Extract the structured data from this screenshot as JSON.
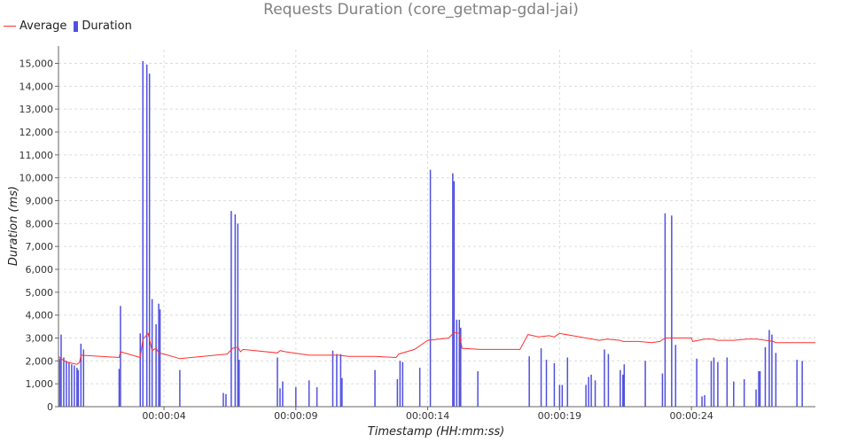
{
  "chart_data": {
    "type": "bar",
    "title": "Requests Duration (core_getmap-gdal-jai)",
    "xlabel": "Timestamp (HH:mm:ss)",
    "ylabel": "Duration (ms)",
    "ylim": [
      0,
      15600
    ],
    "xlim_seconds": [
      0,
      28.7
    ],
    "y_ticks": [
      0,
      1000,
      2000,
      3000,
      4000,
      5000,
      6000,
      7000,
      8000,
      9000,
      10000,
      11000,
      12000,
      13000,
      14000,
      15000
    ],
    "y_tick_labels": [
      "0",
      "1,000",
      "2,000",
      "3,000",
      "4,000",
      "5,000",
      "6,000",
      "7,000",
      "8,000",
      "9,000",
      "10,000",
      "11,000",
      "12,000",
      "13,000",
      "14,000",
      "15,000"
    ],
    "x_ticks_seconds": [
      4,
      9,
      14,
      19,
      24
    ],
    "x_tick_labels": [
      "00:00:04",
      "00:00:09",
      "00:00:14",
      "00:00:19",
      "00:00:24"
    ],
    "grid": true,
    "legend_position": "top-left",
    "colors": {
      "average": "#ff3030",
      "duration": "#5050e0",
      "duration_light": "#b4b4ee",
      "grid": "#dddddd"
    },
    "series": [
      {
        "name": "Average",
        "type": "line",
        "points": [
          [
            0.0,
            2200
          ],
          [
            0.15,
            2050
          ],
          [
            0.3,
            1950
          ],
          [
            0.5,
            1900
          ],
          [
            0.7,
            1850
          ],
          [
            0.8,
            1950
          ],
          [
            0.85,
            2250
          ],
          [
            2.3,
            2150
          ],
          [
            2.35,
            2400
          ],
          [
            3.1,
            2150
          ],
          [
            3.2,
            2950
          ],
          [
            3.4,
            3200
          ],
          [
            3.55,
            2450
          ],
          [
            3.7,
            2550
          ],
          [
            3.8,
            2350
          ],
          [
            4.0,
            2300
          ],
          [
            4.6,
            2100
          ],
          [
            6.4,
            2300
          ],
          [
            6.6,
            2550
          ],
          [
            6.8,
            2600
          ],
          [
            6.9,
            2400
          ],
          [
            7.0,
            2500
          ],
          [
            8.3,
            2350
          ],
          [
            8.4,
            2450
          ],
          [
            8.6,
            2400
          ],
          [
            9.5,
            2250
          ],
          [
            10.6,
            2250
          ],
          [
            11.0,
            2200
          ],
          [
            12.0,
            2200
          ],
          [
            12.8,
            2150
          ],
          [
            12.9,
            2300
          ],
          [
            13.5,
            2500
          ],
          [
            14.0,
            2900
          ],
          [
            14.8,
            3000
          ],
          [
            15.0,
            3250
          ],
          [
            15.2,
            3200
          ],
          [
            15.3,
            2550
          ],
          [
            16.0,
            2500
          ],
          [
            17.5,
            2500
          ],
          [
            17.8,
            3150
          ],
          [
            18.2,
            3050
          ],
          [
            18.6,
            3100
          ],
          [
            18.8,
            3050
          ],
          [
            19.0,
            3200
          ],
          [
            19.5,
            3100
          ],
          [
            20.0,
            3000
          ],
          [
            20.5,
            2900
          ],
          [
            20.8,
            2950
          ],
          [
            21.3,
            2900
          ],
          [
            21.4,
            2850
          ],
          [
            22.0,
            2850
          ],
          [
            22.5,
            2800
          ],
          [
            22.8,
            2850
          ],
          [
            23.0,
            3000
          ],
          [
            24.0,
            3000
          ],
          [
            24.05,
            2850
          ],
          [
            24.5,
            2950
          ],
          [
            24.8,
            2950
          ],
          [
            25.0,
            2900
          ],
          [
            25.6,
            2900
          ],
          [
            26.1,
            2950
          ],
          [
            26.5,
            2950
          ],
          [
            27.1,
            2850
          ],
          [
            27.2,
            2800
          ],
          [
            28.7,
            2800
          ]
        ]
      },
      {
        "name": "Duration",
        "type": "bar",
        "points": [
          [
            0.05,
            2100
          ],
          [
            0.1,
            3150
          ],
          [
            0.2,
            2150
          ],
          [
            0.3,
            2000
          ],
          [
            0.4,
            1950
          ],
          [
            0.5,
            1850
          ],
          [
            0.6,
            1800
          ],
          [
            0.7,
            1700
          ],
          [
            0.75,
            1600
          ],
          [
            0.85,
            2750
          ],
          [
            0.95,
            2500
          ],
          [
            2.3,
            1650
          ],
          [
            2.35,
            4400
          ],
          [
            3.1,
            3200
          ],
          [
            3.2,
            15100
          ],
          [
            3.35,
            14950
          ],
          [
            3.45,
            14550
          ],
          [
            3.55,
            4700
          ],
          [
            3.7,
            3600
          ],
          [
            3.8,
            4500
          ],
          [
            3.85,
            4250
          ],
          [
            4.6,
            1600
          ],
          [
            6.25,
            600
          ],
          [
            6.35,
            550
          ],
          [
            6.55,
            8550
          ],
          [
            6.7,
            8400
          ],
          [
            6.8,
            8000
          ],
          [
            6.85,
            2050
          ],
          [
            8.3,
            2150
          ],
          [
            8.4,
            800
          ],
          [
            8.5,
            1100
          ],
          [
            9.0,
            850
          ],
          [
            9.5,
            1150
          ],
          [
            9.8,
            850
          ],
          [
            10.4,
            2450
          ],
          [
            10.55,
            2300
          ],
          [
            10.7,
            2300
          ],
          [
            10.75,
            1250
          ],
          [
            12.0,
            1600
          ],
          [
            12.85,
            1200
          ],
          [
            12.95,
            2000
          ],
          [
            13.05,
            1950
          ],
          [
            13.7,
            1700
          ],
          [
            14.1,
            10350
          ],
          [
            14.95,
            10200
          ],
          [
            15.0,
            9850
          ],
          [
            15.1,
            3800
          ],
          [
            15.2,
            3800
          ],
          [
            15.25,
            3450
          ],
          [
            15.9,
            1550
          ],
          [
            17.85,
            2200
          ],
          [
            18.3,
            2550
          ],
          [
            18.5,
            2050
          ],
          [
            18.8,
            1900
          ],
          [
            19.0,
            950
          ],
          [
            19.1,
            950
          ],
          [
            19.3,
            2150
          ],
          [
            20.0,
            950
          ],
          [
            20.1,
            1300
          ],
          [
            20.2,
            1400
          ],
          [
            20.35,
            1150
          ],
          [
            20.7,
            2500
          ],
          [
            20.85,
            2300
          ],
          [
            21.3,
            1600
          ],
          [
            21.4,
            1400
          ],
          [
            21.45,
            1850
          ],
          [
            22.25,
            2000
          ],
          [
            22.9,
            1450
          ],
          [
            23.0,
            8450
          ],
          [
            23.25,
            8350
          ],
          [
            23.4,
            2700
          ],
          [
            24.2,
            2100
          ],
          [
            24.4,
            450
          ],
          [
            24.5,
            500
          ],
          [
            24.75,
            2000
          ],
          [
            24.85,
            2150
          ],
          [
            25.0,
            1950
          ],
          [
            25.35,
            2150
          ],
          [
            25.6,
            1100
          ],
          [
            26.0,
            1200
          ],
          [
            26.45,
            750
          ],
          [
            26.55,
            1550
          ],
          [
            26.6,
            1550
          ],
          [
            26.8,
            2600
          ],
          [
            26.95,
            3350
          ],
          [
            27.05,
            3150
          ],
          [
            27.2,
            2350
          ],
          [
            28.0,
            2050
          ],
          [
            28.2,
            2000
          ]
        ]
      }
    ]
  }
}
